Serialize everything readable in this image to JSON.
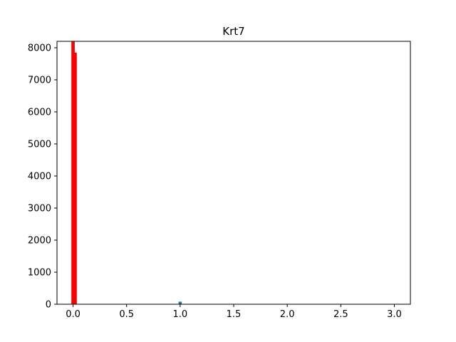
{
  "chart_data": {
    "type": "bar",
    "title": "Krt7",
    "xlabel": "",
    "ylabel": "",
    "xlim": [
      -0.15,
      3.15
    ],
    "ylim": [
      0,
      8200
    ],
    "x_ticks": [
      0.0,
      0.5,
      1.0,
      1.5,
      2.0,
      2.5,
      3.0
    ],
    "x_tick_labels": [
      "0.0",
      "0.5",
      "1.0",
      "1.5",
      "2.0",
      "2.5",
      "3.0"
    ],
    "y_ticks": [
      0,
      1000,
      2000,
      3000,
      4000,
      5000,
      6000,
      7000,
      8000
    ],
    "y_tick_labels": [
      "0",
      "1000",
      "2000",
      "3000",
      "4000",
      "5000",
      "6000",
      "7000",
      "8000"
    ],
    "grid": false,
    "series": [
      {
        "color": "#1f77b4",
        "bin_width": 0.03,
        "bins": [
          {
            "x": 0.0,
            "value": 8200
          },
          {
            "x": 1.0,
            "value": 80
          }
        ]
      },
      {
        "color": "#ff0000",
        "bin_width": 0.03,
        "bins": [
          {
            "x": 0.0,
            "value": 8200
          },
          {
            "x": 0.02,
            "value": 7850
          }
        ]
      }
    ]
  }
}
